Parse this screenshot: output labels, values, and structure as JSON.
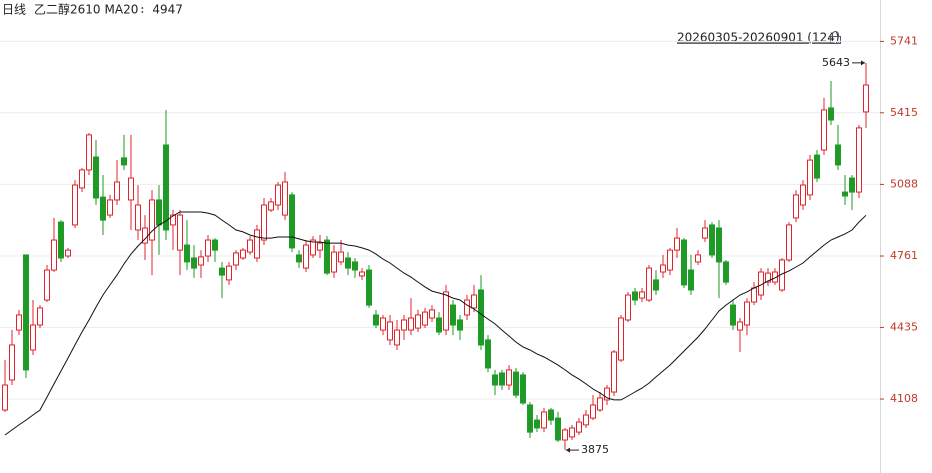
{
  "chart_data": {
    "type": "candlestick",
    "period": "日线",
    "range_label": "20260305-20260901 (124)",
    "ylim": [
      3784,
      5930
    ],
    "yticks": [
      4108,
      4435,
      4761,
      5088,
      5415,
      5741
    ],
    "grid": true,
    "series": [
      {
        "name": "乙二醇2610",
        "type": "candlestick",
        "up_color": "#e0242d",
        "down_color": "#1e9a26",
        "open": [
          4058,
          4195,
          4423,
          4766,
          4332,
          4446,
          4560,
          4697,
          4916,
          4761,
          4903,
          5072,
          5154,
          5213,
          5030,
          4948,
          5017,
          5209,
          5017,
          4880,
          4820,
          4834,
          5017,
          5268,
          4903,
          4788,
          4811,
          4752,
          4720,
          4761,
          4834,
          4706,
          4652,
          4720,
          4752,
          4779,
          4752,
          4834,
          4971,
          4994,
          4948,
          5040,
          4766,
          4706,
          4766,
          4788,
          4834,
          4688,
          4734,
          4752,
          4734,
          4670,
          4697,
          4492,
          4423,
          4378,
          4355,
          4423,
          4423,
          4432,
          4446,
          4478,
          4478,
          4423,
          4537,
          4469,
          4492,
          4524,
          4606,
          4378,
          4218,
          4227,
          4172,
          4231,
          4218,
          4081,
          4012,
          3976,
          4058,
          4021,
          3921,
          3935,
          3957,
          3990,
          4021,
          4058,
          4104,
          4140,
          4286,
          4469,
          4597,
          4569,
          4560,
          4652,
          4688,
          4697,
          4788,
          4834,
          4697,
          4734,
          4843,
          4903,
          4889,
          4734,
          4537,
          4423,
          4446,
          4551,
          4583,
          4642,
          4642,
          4606,
          4743,
          4935,
          4994,
          5040,
          5222,
          5245,
          5437,
          5268,
          5053,
          5117,
          5053,
          5419
        ],
        "high": [
          4286,
          4423,
          4515,
          4766,
          4560,
          4537,
          4720,
          4935,
          4925,
          4798,
          5108,
          5163,
          5323,
          5291,
          5131,
          5040,
          5199,
          5314,
          5314,
          5085,
          4948,
          5062,
          5085,
          5428,
          4971,
          4971,
          4925,
          4811,
          4788,
          4857,
          4843,
          4734,
          4734,
          4788,
          4798,
          4852,
          4903,
          5026,
          5026,
          5099,
          5145,
          5053,
          4788,
          4834,
          4852,
          4857,
          4852,
          4811,
          4834,
          4779,
          4752,
          4706,
          4720,
          4515,
          4492,
          4492,
          4469,
          4492,
          4569,
          4515,
          4524,
          4537,
          4505,
          4629,
          4560,
          4492,
          4583,
          4629,
          4674,
          4400,
          4241,
          4241,
          4263,
          4250,
          4231,
          4094,
          4035,
          4067,
          4067,
          4049,
          3976,
          3990,
          4021,
          4058,
          4126,
          4140,
          4172,
          4332,
          4492,
          4597,
          4615,
          4615,
          4720,
          4697,
          4766,
          4798,
          4889,
          4843,
          4766,
          4788,
          4925,
          4916,
          4925,
          4743,
          4560,
          4478,
          4569,
          4642,
          4706,
          4706,
          4706,
          4752,
          4916,
          5062,
          5108,
          5222,
          5245,
          5483,
          5560,
          5359,
          5131,
          5131,
          5359,
          5643
        ],
        "low": [
          4049,
          4172,
          4400,
          4204,
          4309,
          4432,
          4551,
          4688,
          4734,
          4752,
          4889,
          5053,
          5131,
          4994,
          4857,
          4935,
          4994,
          5154,
          4880,
          4834,
          4743,
          4674,
          4766,
          4834,
          4788,
          4674,
          4697,
          4661,
          4661,
          4734,
          4734,
          4569,
          4629,
          4697,
          4743,
          4766,
          4734,
          4811,
          4962,
          4971,
          4925,
          4779,
          4706,
          4688,
          4752,
          4752,
          4674,
          4661,
          4720,
          4674,
          4661,
          4652,
          4524,
          4432,
          4400,
          4355,
          4332,
          4378,
          4400,
          4414,
          4432,
          4460,
          4400,
          4400,
          4400,
          4378,
          4469,
          4505,
          4332,
          4231,
          4126,
          4149,
          4149,
          4113,
          4081,
          3930,
          3957,
          3957,
          3990,
          3912,
          3875,
          3921,
          3944,
          3976,
          4012,
          4049,
          4081,
          4122,
          4277,
          4460,
          4537,
          4551,
          4551,
          4583,
          4661,
          4674,
          4752,
          4615,
          4583,
          4720,
          4825,
          4752,
          4569,
          4629,
          4423,
          4323,
          4400,
          4537,
          4560,
          4624,
          4629,
          4597,
          4734,
          4916,
          4971,
          5017,
          5099,
          5222,
          5359,
          5154,
          4994,
          4971,
          5026,
          5346
        ],
        "close": [
          4172,
          4355,
          4492,
          4241,
          4446,
          4524,
          4697,
          4834,
          4752,
          4788,
          5085,
          5154,
          5314,
          5026,
          4925,
          5017,
          5099,
          5177,
          5117,
          4994,
          4889,
          5017,
          4903,
          4880,
          4948,
          4948,
          4734,
          4706,
          4757,
          4834,
          4788,
          4674,
          4715,
          4775,
          4788,
          4834,
          4880,
          4994,
          5008,
          5085,
          5099,
          4798,
          4734,
          4811,
          4834,
          4820,
          4683,
          4779,
          4779,
          4706,
          4697,
          4688,
          4537,
          4446,
          4478,
          4460,
          4423,
          4469,
          4478,
          4492,
          4505,
          4515,
          4414,
          4597,
          4446,
          4423,
          4560,
          4583,
          4355,
          4250,
          4172,
          4172,
          4241,
          4126,
          4090,
          3957,
          3976,
          4049,
          4012,
          3921,
          3967,
          3976,
          4003,
          4035,
          4081,
          4113,
          4158,
          4323,
          4478,
          4583,
          4560,
          4597,
          4706,
          4606,
          4720,
          4788,
          4843,
          4629,
          4606,
          4766,
          4889,
          4766,
          4734,
          4642,
          4446,
          4460,
          4551,
          4615,
          4688,
          4683,
          4688,
          4743,
          4903,
          5040,
          5085,
          5199,
          5117,
          5428,
          5382,
          5177,
          5035,
          5053,
          5346,
          5542
        ]
      },
      {
        "name": "MA20",
        "type": "line",
        "color": "#111111",
        "values": [
          3944,
          3967,
          3990,
          4012,
          4035,
          4058,
          4117,
          4177,
          4236,
          4295,
          4355,
          4414,
          4469,
          4528,
          4583,
          4629,
          4674,
          4725,
          4770,
          4807,
          4839,
          4875,
          4903,
          4921,
          4944,
          4962,
          4962,
          4962,
          4962,
          4957,
          4948,
          4925,
          4903,
          4880,
          4871,
          4857,
          4848,
          4843,
          4843,
          4848,
          4848,
          4848,
          4839,
          4830,
          4825,
          4825,
          4820,
          4820,
          4820,
          4811,
          4807,
          4798,
          4788,
          4770,
          4747,
          4729,
          4706,
          4683,
          4665,
          4642,
          4620,
          4601,
          4592,
          4583,
          4569,
          4560,
          4537,
          4519,
          4496,
          4473,
          4451,
          4423,
          4396,
          4368,
          4346,
          4332,
          4314,
          4300,
          4282,
          4263,
          4241,
          4218,
          4199,
          4177,
          4154,
          4136,
          4113,
          4104,
          4104,
          4122,
          4140,
          4158,
          4181,
          4209,
          4236,
          4263,
          4295,
          4327,
          4359,
          4391,
          4428,
          4469,
          4510,
          4537,
          4560,
          4583,
          4597,
          4615,
          4629,
          4647,
          4661,
          4679,
          4693,
          4711,
          4729,
          4757,
          4784,
          4811,
          4834,
          4848,
          4862,
          4880,
          4916,
          4947
        ]
      }
    ]
  }
}
